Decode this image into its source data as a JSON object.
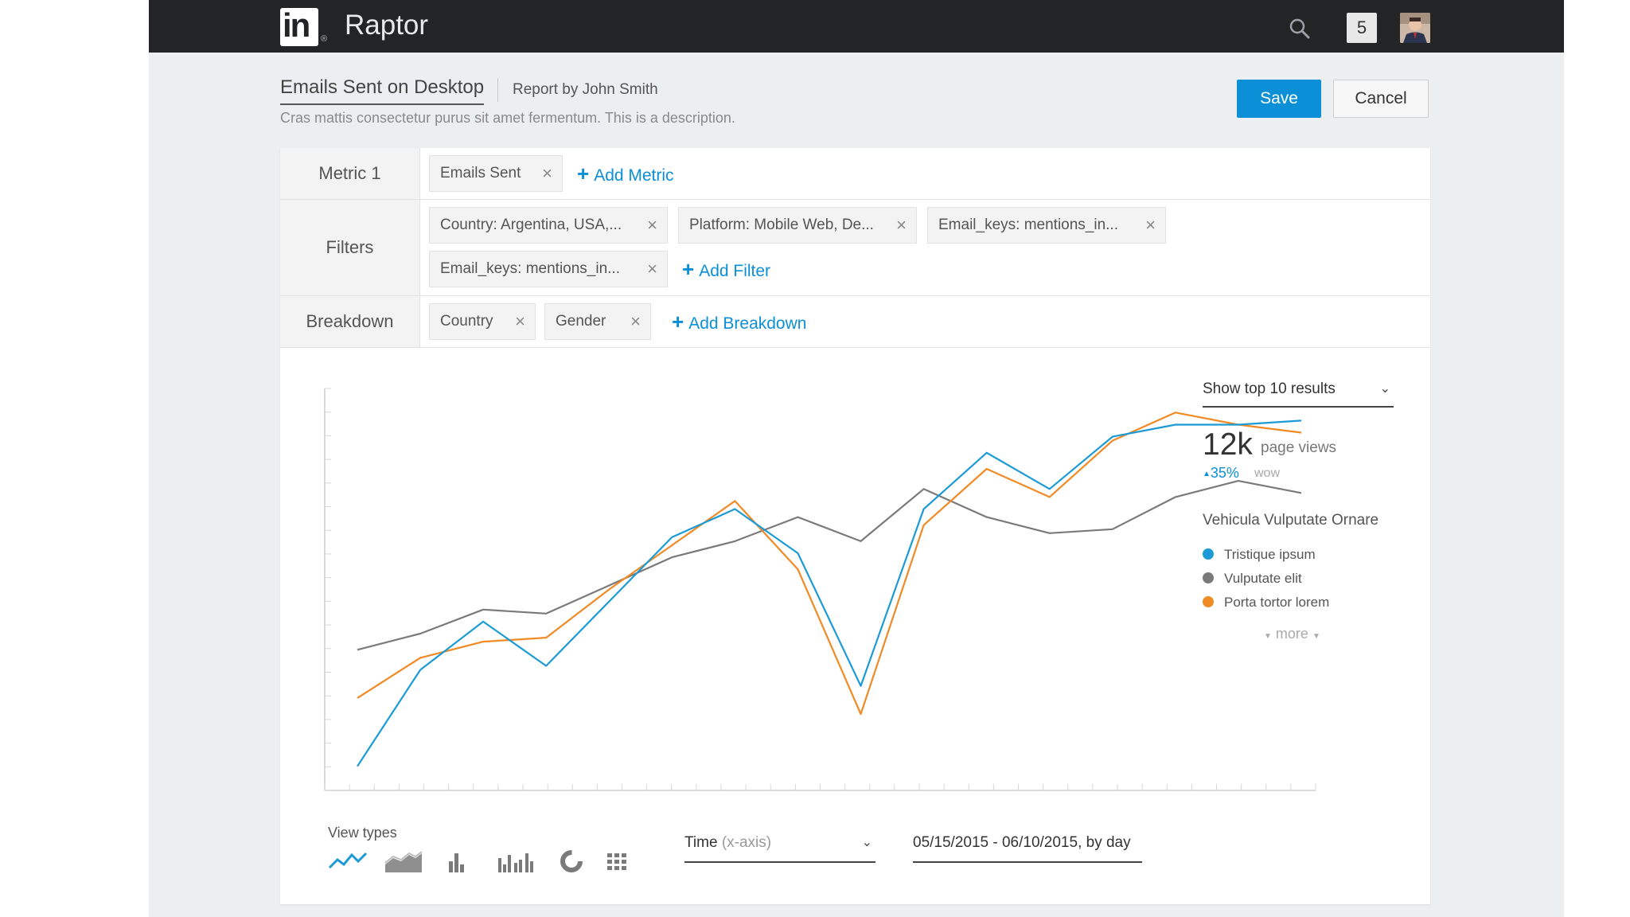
{
  "app": {
    "name": "Raptor",
    "logo_text": "in",
    "notification_count": "5"
  },
  "report": {
    "title": "Emails Sent on Desktop",
    "author": "Report by John Smith",
    "description": "Cras mattis consectetur purus sit amet fermentum. This is a description."
  },
  "actions": {
    "save": "Save",
    "cancel": "Cancel"
  },
  "metric_row": {
    "label": "Metric 1",
    "chips": [
      "Emails Sent"
    ],
    "add_label": "Add Metric"
  },
  "filters_row": {
    "label": "Filters",
    "chips": [
      "Country: Argentina, USA,...",
      "Platform: Mobile Web, De...",
      "Email_keys: mentions_in...",
      "Email_keys: mentions_in..."
    ],
    "add_label": "Add Filter"
  },
  "breakdown_row": {
    "label": "Breakdown",
    "chips": [
      "Country",
      "Gender"
    ],
    "add_label": "Add Breakdown"
  },
  "summary": {
    "results_select": "Show top 10 results",
    "big_value": "12k",
    "big_label": "page views",
    "delta": "35%",
    "delta_unit": "wow",
    "legend_title": "Vehicula Vulputate Ornare",
    "more_label": "more"
  },
  "controls": {
    "view_types_label": "View types",
    "axis_select_main": "Time",
    "axis_select_hint": "(x-axis)",
    "date_range": "05/15/2015 - 06/10/2015, by day"
  },
  "view_type_icons": [
    "line-chart-icon",
    "area-chart-icon",
    "bar-chart-icon",
    "grouped-bar-chart-icon",
    "donut-chart-icon",
    "grid-table-icon"
  ],
  "chart_data": {
    "type": "line",
    "x": [
      0,
      1,
      2,
      3,
      4,
      5,
      6,
      7,
      8,
      9,
      10,
      11,
      12,
      13,
      14,
      15
    ],
    "ylim": [
      0,
      100
    ],
    "grid": false,
    "series": [
      {
        "name": "Tristique ipsum",
        "color": "#1b9ad6",
        "x": [
          0,
          1,
          2,
          3,
          4,
          5,
          6,
          7,
          8,
          9,
          10,
          11,
          12,
          13,
          14,
          15
        ],
        "values": [
          6,
          30,
          42,
          31,
          47,
          63,
          70,
          59,
          26,
          70,
          84,
          75,
          88,
          91,
          91,
          92
        ]
      },
      {
        "name": "Vulputate elit",
        "color": "#7a7a7a",
        "x": [
          0,
          1,
          2,
          3,
          4,
          5,
          6,
          7,
          8,
          9,
          10,
          11,
          12,
          13,
          14,
          15
        ],
        "values": [
          35,
          39,
          45,
          44,
          51,
          58,
          62,
          68,
          62,
          75,
          68,
          64,
          65,
          73,
          77,
          74
        ]
      },
      {
        "name": "Porta tortor lorem",
        "color": "#f08a24",
        "x": [
          0,
          1,
          2,
          3,
          4,
          5,
          6,
          7,
          8,
          9,
          10,
          11,
          12,
          13,
          14,
          15
        ],
        "values": [
          23,
          33,
          37,
          38,
          50,
          61,
          72,
          55,
          19,
          66,
          80,
          73,
          87,
          94,
          91,
          89
        ]
      }
    ]
  }
}
